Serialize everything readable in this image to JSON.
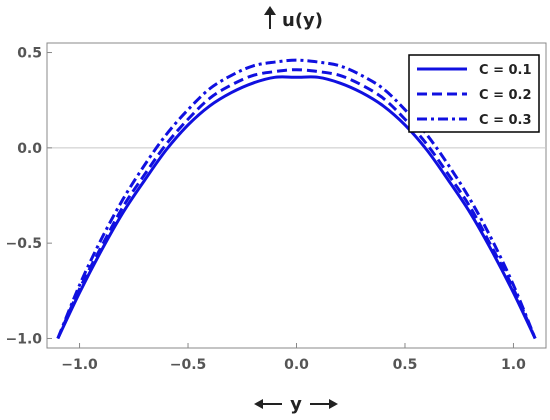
{
  "chart_data": {
    "type": "line",
    "ylabel": "u(y)",
    "xlabel": "y",
    "xlim": [
      -1.15,
      1.15
    ],
    "ylim": [
      -1.05,
      0.55
    ],
    "x_ticks": [
      -1.0,
      -0.5,
      0.0,
      0.5,
      1.0
    ],
    "x_tick_labels": [
      "−1.0",
      "−0.5",
      "0.0",
      "0.5",
      "1.0"
    ],
    "y_ticks": [
      -1.0,
      -0.5,
      0.0,
      0.5
    ],
    "y_tick_labels": [
      "−1.0",
      "−0.5",
      "0.0",
      "0.5"
    ],
    "grid": "horizontal line at y = 0",
    "legend_position": "top-right",
    "x_domain": [
      -1.1,
      1.1
    ],
    "series": [
      {
        "name": "C = 0.1",
        "style": "solid",
        "color": "#1010e0",
        "x": [
          -1.1,
          -1.0,
          -0.9,
          -0.8,
          -0.7,
          -0.6,
          -0.5,
          -0.4,
          -0.3,
          -0.2,
          -0.1,
          0.0,
          0.1,
          0.2,
          0.3,
          0.4,
          0.5,
          0.6,
          0.7,
          0.8,
          0.9,
          1.0,
          1.1
        ],
        "y": [
          -1.0,
          -0.76,
          -0.54,
          -0.34,
          -0.17,
          -0.01,
          0.12,
          0.22,
          0.29,
          0.34,
          0.37,
          0.37,
          0.37,
          0.34,
          0.29,
          0.22,
          0.12,
          -0.01,
          -0.17,
          -0.34,
          -0.54,
          -0.76,
          -1.0
        ]
      },
      {
        "name": "C = 0.2",
        "style": "dashed",
        "color": "#1010e0",
        "x": [
          -1.1,
          -1.0,
          -0.9,
          -0.8,
          -0.7,
          -0.6,
          -0.5,
          -0.4,
          -0.3,
          -0.2,
          -0.1,
          0.0,
          0.1,
          0.2,
          0.3,
          0.4,
          0.5,
          0.6,
          0.7,
          0.8,
          0.9,
          1.0,
          1.1
        ],
        "y": [
          -1.0,
          -0.74,
          -0.52,
          -0.31,
          -0.14,
          0.02,
          0.15,
          0.26,
          0.33,
          0.38,
          0.4,
          0.41,
          0.4,
          0.38,
          0.33,
          0.26,
          0.15,
          0.02,
          -0.14,
          -0.31,
          -0.52,
          -0.74,
          -1.0
        ]
      },
      {
        "name": "C = 0.3",
        "style": "dashdot",
        "color": "#1010e0",
        "x": [
          -1.1,
          -1.0,
          -0.9,
          -0.8,
          -0.7,
          -0.6,
          -0.5,
          -0.4,
          -0.3,
          -0.2,
          -0.1,
          0.0,
          0.1,
          0.2,
          0.3,
          0.4,
          0.5,
          0.6,
          0.7,
          0.8,
          0.9,
          1.0,
          1.1
        ],
        "y": [
          -1.0,
          -0.72,
          -0.48,
          -0.27,
          -0.09,
          0.07,
          0.2,
          0.31,
          0.38,
          0.43,
          0.45,
          0.46,
          0.45,
          0.43,
          0.38,
          0.31,
          0.2,
          0.07,
          -0.09,
          -0.27,
          -0.48,
          -0.72,
          -1.0
        ]
      }
    ]
  }
}
